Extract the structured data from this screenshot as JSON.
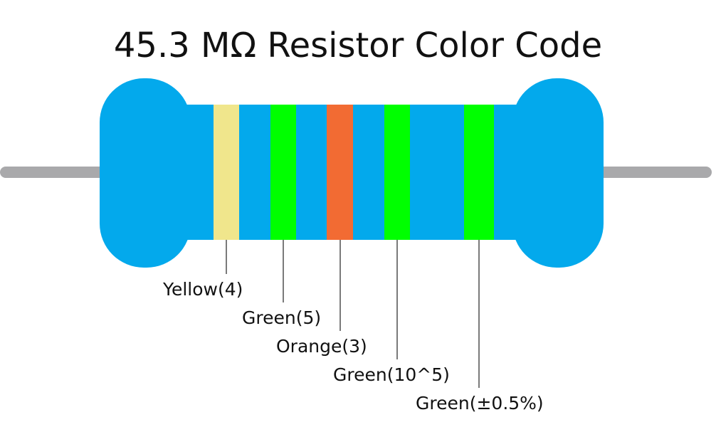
{
  "title": "45.3 MΩ Resistor Color Code",
  "bands": [
    {
      "label": "Yellow(4)"
    },
    {
      "label": "Green(5)"
    },
    {
      "label": "Orange(3)"
    },
    {
      "label": "Green(10^5)"
    },
    {
      "label": "Green(±0.5%)"
    }
  ]
}
